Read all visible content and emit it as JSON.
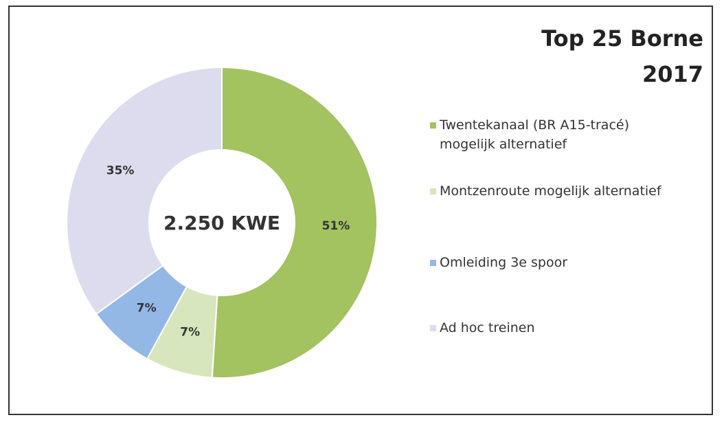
{
  "chart_data": {
    "type": "donut",
    "title": "Top 25 Borne 2017",
    "center_label": "2.250 KWE",
    "categories": [
      "Twentekanaal (BR A15-tracé) mogelijk alternatief",
      "Montzenroute mogelijk alternatief",
      "Omleiding 3e spoor",
      "Ad hoc treinen"
    ],
    "values": [
      51,
      7,
      7,
      35
    ],
    "value_labels": [
      "51%",
      "7%",
      "7%",
      "35%"
    ],
    "colors": [
      "#a3c260",
      "#d8e6bd",
      "#93b8e6",
      "#dcdcee"
    ],
    "legend": "right"
  }
}
